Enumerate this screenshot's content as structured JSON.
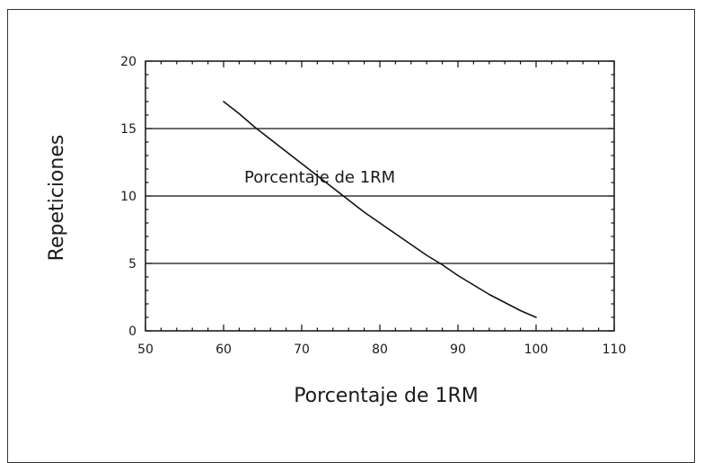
{
  "chart_data": {
    "type": "line",
    "title": "",
    "xlabel": "Porcentaje de 1RM",
    "ylabel": "Repeticiones",
    "xlim": [
      50,
      110
    ],
    "ylim": [
      0,
      20
    ],
    "x_ticks": [
      50,
      60,
      70,
      80,
      90,
      100,
      110
    ],
    "y_ticks": [
      0,
      5,
      10,
      15,
      20
    ],
    "grid": "horizontal",
    "annotation": "Porcentaje de 1RM",
    "series": [
      {
        "x": [
          60,
          62,
          64,
          66,
          68,
          70,
          72,
          74,
          76,
          78,
          80,
          82,
          84,
          86,
          88,
          90,
          92,
          94,
          96,
          98,
          100
        ],
        "y": [
          17,
          16.1,
          15.1,
          14.2,
          13.3,
          12.4,
          11.5,
          10.6,
          9.7,
          8.8,
          8.0,
          7.2,
          6.4,
          5.6,
          4.9,
          4.1,
          3.4,
          2.7,
          2.1,
          1.5,
          1.0
        ]
      }
    ]
  },
  "colors": {
    "line": "#111111",
    "grid": "#111111",
    "axis": "#111111",
    "frame": "#333333"
  }
}
